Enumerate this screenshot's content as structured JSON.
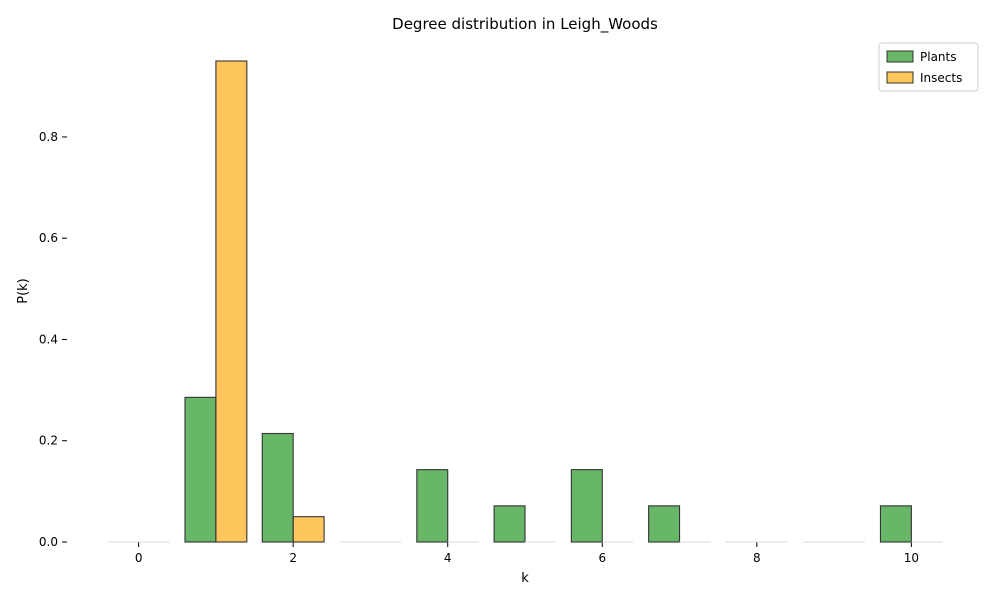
{
  "chart_data": {
    "type": "bar",
    "title": "Degree distribution in Leigh_Woods",
    "xlabel": "k",
    "ylabel": "P(k)",
    "x": [
      0,
      1,
      2,
      3,
      4,
      5,
      6,
      7,
      8,
      9,
      10
    ],
    "x_ticks": [
      "0",
      "2",
      "4",
      "6",
      "8",
      "10"
    ],
    "y_ticks": [
      "0.0",
      "0.2",
      "0.4",
      "0.6",
      "0.8"
    ],
    "ylim": [
      0,
      0.95
    ],
    "xlim": [
      -0.5,
      10.5
    ],
    "grid": false,
    "legend_position": "top-right",
    "series": [
      {
        "name": "Plants",
        "color": "#2e9a2e",
        "values": [
          0,
          0.2857,
          0.2143,
          0,
          0.1429,
          0.0714,
          0.1429,
          0.0714,
          0,
          0,
          0.0714
        ]
      },
      {
        "name": "Insects",
        "color": "#ffb020",
        "values": [
          0,
          0.95,
          0.05,
          0,
          0,
          0,
          0,
          0,
          0,
          0,
          0
        ]
      }
    ]
  }
}
